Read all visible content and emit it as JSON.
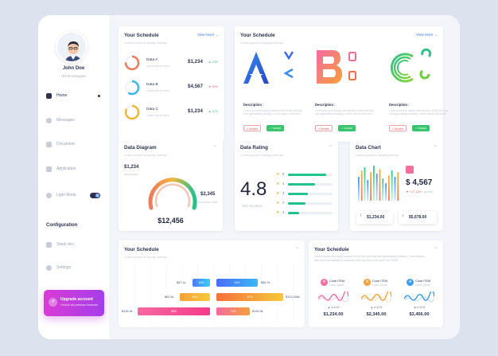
{
  "user": {
    "name": "John Doe",
    "role": "UI/UX Designer"
  },
  "sidebar": {
    "items": [
      {
        "label": "Home",
        "icon": "home-icon",
        "active": true
      },
      {
        "label": "Messages",
        "icon": "message-icon"
      },
      {
        "label": "Document",
        "icon": "document-icon"
      },
      {
        "label": "Application",
        "icon": "grid-icon"
      },
      {
        "label": "Light Mode",
        "icon": "sun-icon",
        "toggle": true
      }
    ],
    "config_title": "Configuration",
    "config_items": [
      {
        "label": "Stack dev",
        "icon": "stack-icon"
      },
      {
        "label": "Settings",
        "icon": "gear-icon"
      }
    ],
    "upgrade": {
      "title": "Upgrade account",
      "subtitle": "Unlock all premium features"
    }
  },
  "schedule_small": {
    "title": "Your Schedule",
    "view_more": "View More →",
    "subtitle": "Lorem ipsum is simply dummy",
    "items": [
      {
        "name": "Data A",
        "desc": "Lorem ipsum dolor",
        "value": "$1,234",
        "change": "▲ 23%",
        "color": "#f07a5c",
        "up": true
      },
      {
        "name": "Data B",
        "desc": "Lorem ipsum dolor",
        "value": "$4,567",
        "change": "▼ 15%",
        "color": "#38b6f2",
        "up": false
      },
      {
        "name": "Data C",
        "desc": "Lorem ipsum dolor",
        "value": "$1,234",
        "change": "▲ 17%",
        "color": "#f5b43a",
        "up": true
      }
    ]
  },
  "schedule_brands": {
    "title": "Your Schedule",
    "view_more": "View More →",
    "subtitle": "Lorem ipsum is simply dummy",
    "items": [
      {
        "desc_label": "Description :",
        "desc_text": "Lorem ipsum is simply dummy text of the printing and typesetting industry. Lorem ipsum has been",
        "decline": "× Decline",
        "accept": "✓ Accept"
      },
      {
        "desc_label": "Description :",
        "desc_text": "Lorem ipsum is simply dummy text of the printing and typesetting industry. Lorem ipsum has been",
        "decline": "× Decline",
        "accept": "✓ Accept"
      },
      {
        "desc_label": "Description :",
        "desc_text": "Lorem ipsum is simply dummy text of the printing and typesetting industry. Lorem ipsum has been",
        "decline": "× Decline",
        "accept": "✓ Accept"
      }
    ]
  },
  "data_diagram": {
    "title": "Data Diagram",
    "menu": "···",
    "subtitle": "Lorem ipsum is simply dummy",
    "left_value": "$1,234",
    "left_caption": "Description",
    "right_value": "$2,345",
    "right_caption": "Description data",
    "total": "$12,456"
  },
  "data_rating": {
    "title": "Data Rating",
    "menu": "···",
    "subtitle": "Lorem ipsum is simply dummy",
    "score": "4.8",
    "reviews": "352 Reviews",
    "rows": [
      {
        "star": 5,
        "fraction": 0.85
      },
      {
        "star": 4,
        "fraction": 0.6
      },
      {
        "star": 3,
        "fraction": 0.45
      },
      {
        "star": 2,
        "fraction": 0.4
      },
      {
        "star": 1,
        "fraction": 0.25
      }
    ]
  },
  "data_chart": {
    "title": "Data Chart",
    "menu": "···",
    "subtitle": "Lorem ipsum is simply dummy",
    "value": "$ 4,567",
    "change": "▼ +17,11%",
    "change_caption": "growth",
    "low": "$1,234.00",
    "high": "$5,678.00"
  },
  "schedule_bars": {
    "title": "Your Schedule",
    "menu": "···",
    "subtitle": "Lorem ipsum is simply dummy",
    "rows": [
      {
        "left_label": "$57.1k",
        "mid_label": "18%",
        "right_mid": "61%",
        "right_label": "$56.7k"
      },
      {
        "left_label": "$64.3k",
        "mid_label": "54%",
        "right_mid": "67%",
        "right_label": "$123,456k"
      },
      {
        "left_label": "$126.3k",
        "mid_label": "88%",
        "right_mid": "71%",
        "right_label": "$126.3k"
      }
    ]
  },
  "schedule_minis": {
    "title": "Your Schedule",
    "menu": "···",
    "text": "Lorem ipsum is simply dummy text of the printing and typesetting industry. Lorem ipsum has been the industry's standard dummy text ever since the 1500s",
    "items": [
      {
        "badge": "A",
        "name": "Code ITEM",
        "sub": "Lorem ipsum",
        "pct": "▲ 4.41%",
        "value": "$1,234.00",
        "color": "#f26fa0"
      },
      {
        "badge": "A",
        "name": "Code ITEM",
        "sub": "Lorem ipsum",
        "pct": "▲ 4.41%",
        "value": "$2,345.00",
        "color": "#f4a23a"
      },
      {
        "badge": "A",
        "name": "Code ITEM",
        "sub": "Lorem ipsum",
        "pct": "▲ 4.41%",
        "value": "$3,456.00",
        "color": "#3a9cf5"
      }
    ]
  }
}
